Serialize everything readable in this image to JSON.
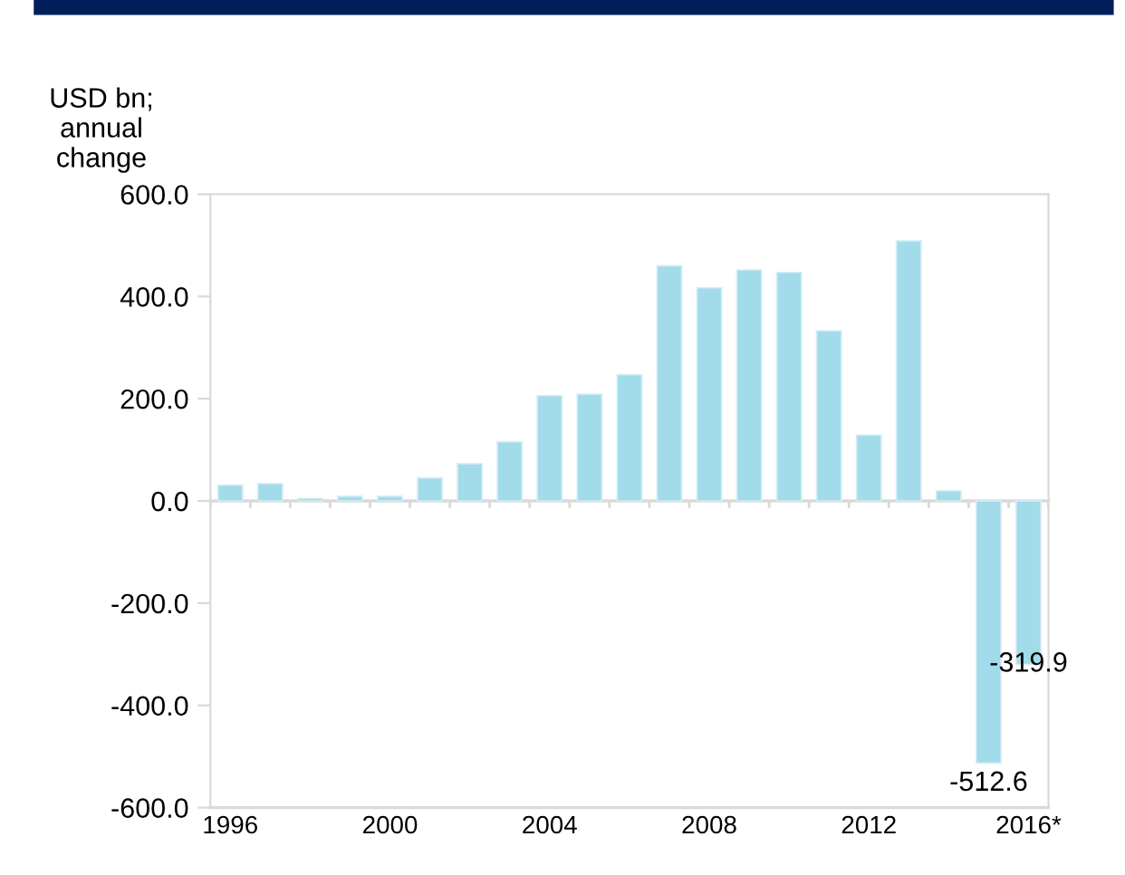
{
  "chart_data": {
    "type": "bar",
    "ylabel": "USD bn;\nannual\nchange",
    "categories": [
      "1996",
      null,
      null,
      null,
      "2000",
      null,
      null,
      null,
      "2004",
      null,
      null,
      null,
      "2008",
      null,
      null,
      null,
      "2012",
      null,
      null,
      null,
      "2016*"
    ],
    "values": [
      31,
      34,
      5,
      9,
      9,
      45,
      73,
      116,
      206,
      209,
      247,
      460,
      417,
      452,
      447,
      333,
      129,
      509,
      20,
      -512.6,
      -319.9
    ],
    "value_labels": [
      null,
      null,
      null,
      null,
      null,
      null,
      null,
      null,
      null,
      null,
      null,
      null,
      null,
      null,
      null,
      null,
      null,
      null,
      null,
      "-512.6",
      "-319.9"
    ],
    "color": "#a2dbea",
    "ylim": [
      -600,
      600
    ],
    "yticks": [
      {
        "value": -600,
        "label": "-600.0"
      },
      {
        "value": -400,
        "label": "-400.0"
      },
      {
        "value": -200,
        "label": "-200.0"
      },
      {
        "value": 0,
        "label": "0.0"
      },
      {
        "value": 200,
        "label": "200.0"
      },
      {
        "value": 400,
        "label": "400.0"
      },
      {
        "value": 600,
        "label": "600.0"
      }
    ]
  }
}
